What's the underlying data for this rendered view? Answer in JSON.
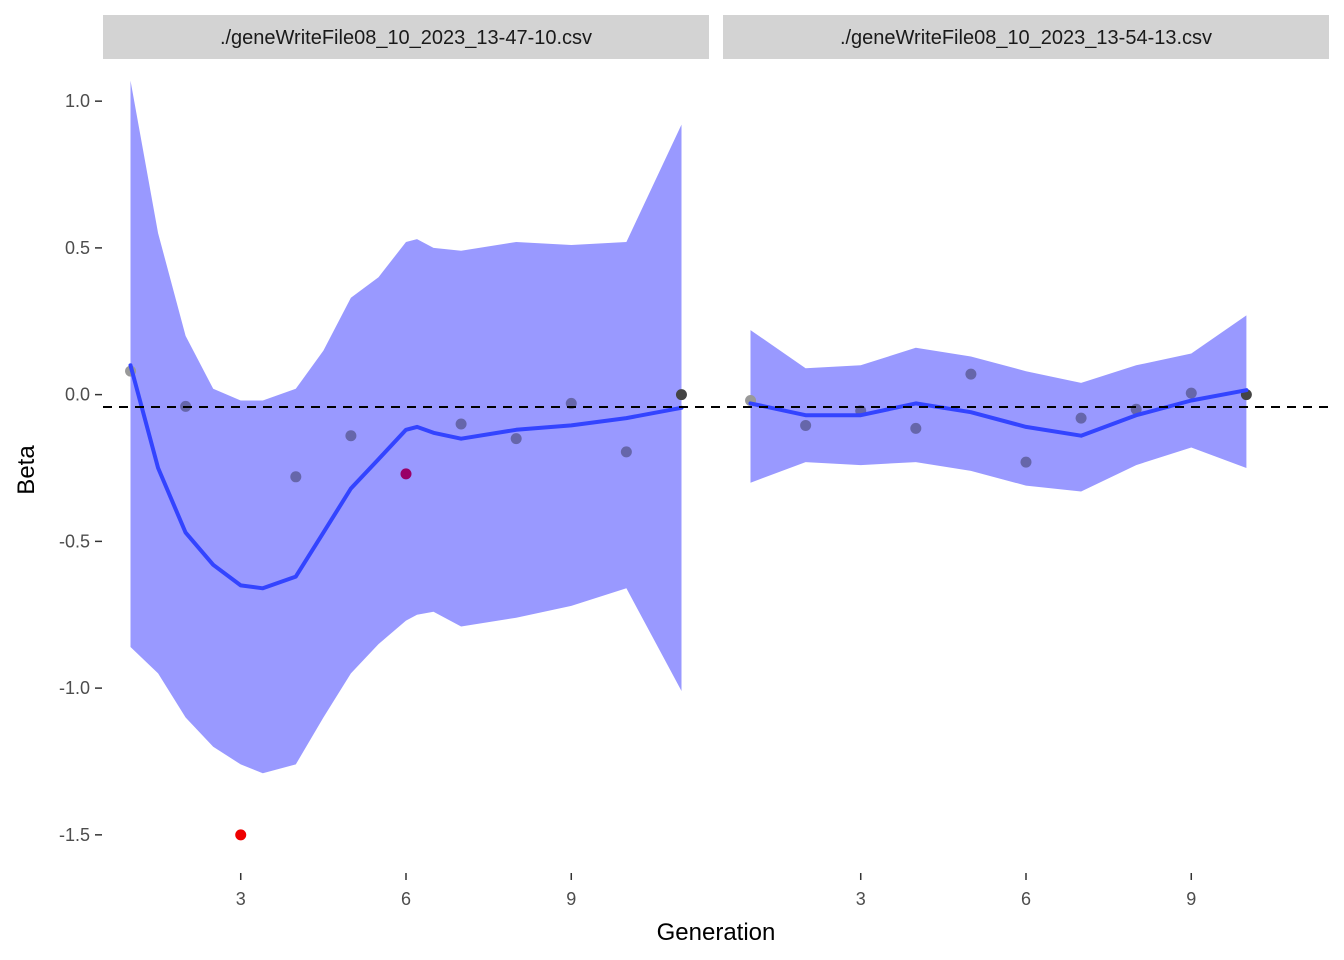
{
  "chart_data": {
    "type": "scatter",
    "xlabel": "Generation",
    "ylabel": "Beta",
    "ylim": [
      -1.63,
      1.13
    ],
    "y_ticks": [
      1.0,
      0.5,
      0.0,
      -0.5,
      -1.0,
      -1.5
    ],
    "y_tick_labels": [
      "1.0",
      "0.5",
      "0.0",
      "-0.5",
      "-1.0",
      "-1.5"
    ],
    "x_ticks": [
      3,
      6,
      9
    ],
    "x_tick_labels": [
      "3",
      "6",
      "9"
    ],
    "reference_line": {
      "y": 0,
      "style": "dashed",
      "color": "#000000"
    },
    "grid": false,
    "colors": {
      "ribbon": "#9999ff",
      "smooth_line": "#3344ff",
      "point": "#6666aa",
      "point_outlier": "#ee0000",
      "point_highlight": "#990066",
      "strip": "#d3d3d3"
    },
    "panels": [
      {
        "strip_label": "./geneWriteFile08_10_2023_13-47-10.csv",
        "xlim": [
          0.5,
          11.5
        ],
        "points": [
          {
            "x": 1,
            "y": 0.08,
            "color": "#999999"
          },
          {
            "x": 2,
            "y": -0.04,
            "color": "#6666aa"
          },
          {
            "x": 3,
            "y": -1.5,
            "color": "#ee0000"
          },
          {
            "x": 4,
            "y": -0.28,
            "color": "#6666aa"
          },
          {
            "x": 5,
            "y": -0.14,
            "color": "#6666aa"
          },
          {
            "x": 6,
            "y": -0.27,
            "color": "#990066"
          },
          {
            "x": 7,
            "y": -0.1,
            "color": "#6666aa"
          },
          {
            "x": 8,
            "y": -0.15,
            "color": "#6666aa"
          },
          {
            "x": 9,
            "y": -0.03,
            "color": "#6666aa"
          },
          {
            "x": 10,
            "y": -0.195,
            "color": "#6666aa"
          },
          {
            "x": 11,
            "y": 0.0,
            "color": "#444444"
          }
        ],
        "smooth": {
          "x": [
            1.0,
            1.5,
            2.0,
            2.5,
            3.0,
            3.4,
            4.0,
            4.5,
            5.0,
            5.5,
            6.0,
            6.2,
            6.5,
            7.0,
            8.0,
            9.0,
            10.0,
            11.0
          ],
          "y": [
            0.1,
            -0.25,
            -0.47,
            -0.58,
            -0.65,
            -0.66,
            -0.62,
            -0.47,
            -0.32,
            -0.22,
            -0.12,
            -0.11,
            -0.13,
            -0.15,
            -0.12,
            -0.105,
            -0.08,
            -0.045
          ],
          "upper": [
            1.07,
            0.55,
            0.2,
            0.02,
            -0.02,
            -0.02,
            0.02,
            0.15,
            0.33,
            0.4,
            0.52,
            0.53,
            0.5,
            0.49,
            0.52,
            0.51,
            0.52,
            0.92
          ],
          "lower": [
            -0.86,
            -0.95,
            -1.1,
            -1.2,
            -1.26,
            -1.29,
            -1.26,
            -1.1,
            -0.95,
            -0.85,
            -0.77,
            -0.75,
            -0.74,
            -0.79,
            -0.76,
            -0.72,
            -0.66,
            -1.01
          ]
        }
      },
      {
        "strip_label": "./geneWriteFile08_10_2023_13-54-13.csv",
        "xlim": [
          0.5,
          11.5
        ],
        "points": [
          {
            "x": 1,
            "y": -0.02,
            "color": "#999999"
          },
          {
            "x": 2,
            "y": -0.105,
            "color": "#6666aa"
          },
          {
            "x": 3,
            "y": -0.055,
            "color": "#6666aa"
          },
          {
            "x": 4,
            "y": -0.115,
            "color": "#6666aa"
          },
          {
            "x": 5,
            "y": 0.07,
            "color": "#6666aa"
          },
          {
            "x": 6,
            "y": -0.23,
            "color": "#6666aa"
          },
          {
            "x": 7,
            "y": -0.08,
            "color": "#6666aa"
          },
          {
            "x": 8,
            "y": -0.05,
            "color": "#6666aa"
          },
          {
            "x": 9,
            "y": 0.005,
            "color": "#6666aa"
          },
          {
            "x": 10,
            "y": 0.0,
            "color": "#444444"
          }
        ],
        "smooth": {
          "x": [
            1.0,
            2.0,
            3.0,
            4.0,
            5.0,
            6.0,
            7.0,
            8.0,
            9.0,
            10.0
          ],
          "y": [
            -0.03,
            -0.07,
            -0.07,
            -0.03,
            -0.06,
            -0.11,
            -0.14,
            -0.07,
            -0.02,
            0.015
          ],
          "upper": [
            0.22,
            0.09,
            0.1,
            0.16,
            0.13,
            0.08,
            0.04,
            0.1,
            0.14,
            0.27
          ],
          "lower": [
            -0.3,
            -0.23,
            -0.24,
            -0.23,
            -0.26,
            -0.31,
            -0.33,
            -0.24,
            -0.18,
            -0.25
          ]
        }
      }
    ]
  }
}
